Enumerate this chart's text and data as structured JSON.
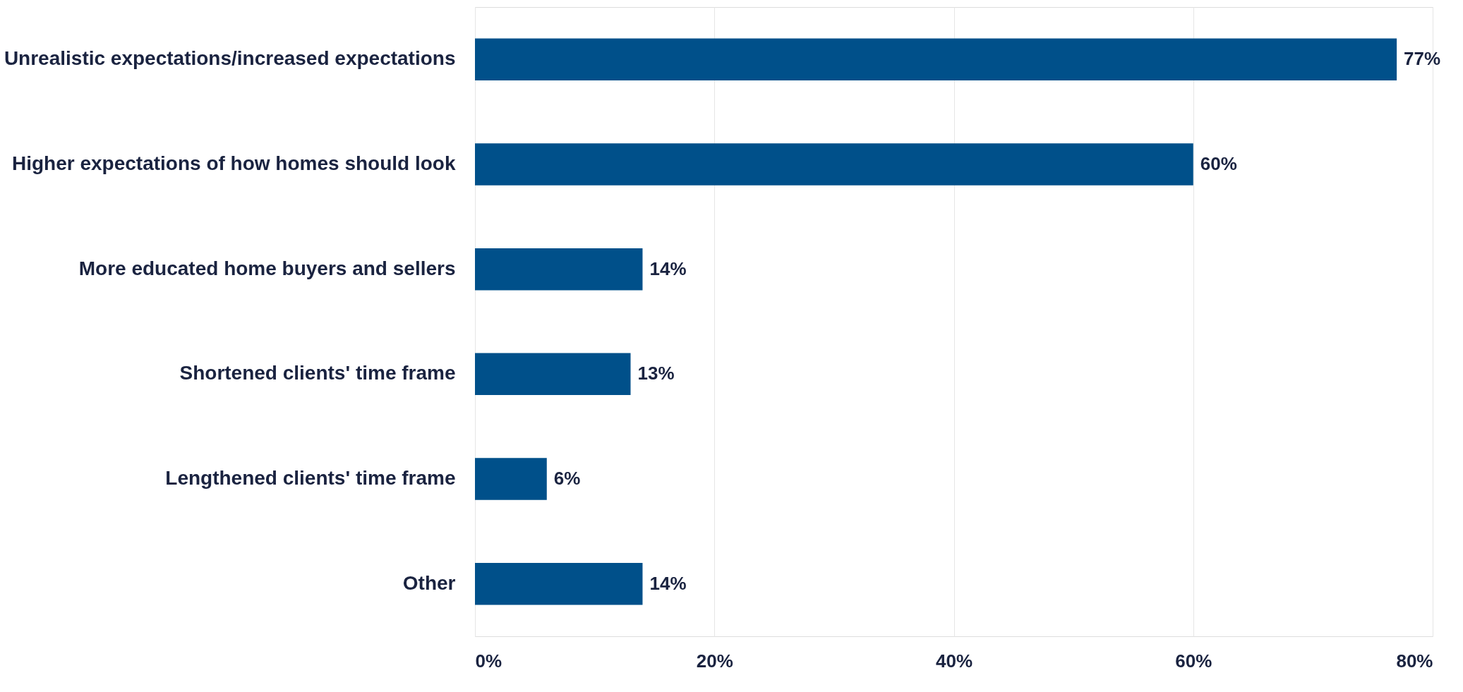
{
  "chart_data": {
    "type": "bar",
    "orientation": "horizontal",
    "categories": [
      "Unrealistic expectations/increased expectations",
      "Higher expectations of how homes should look",
      "More educated home buyers and sellers",
      "Shortened clients' time frame",
      "Lengthened clients' time frame",
      "Other"
    ],
    "values": [
      77,
      60,
      14,
      13,
      6,
      14
    ],
    "value_labels": [
      "77%",
      "60%",
      "14%",
      "13%",
      "6%",
      "14%"
    ],
    "color": "#00508a",
    "xlim": [
      0,
      80
    ],
    "xticks": [
      {
        "value": 0,
        "label": "0%"
      },
      {
        "value": 20,
        "label": "20%"
      },
      {
        "value": 40,
        "label": "40%"
      },
      {
        "value": 60,
        "label": "60%"
      },
      {
        "value": 80,
        "label": "80%"
      }
    ],
    "grid": "x"
  }
}
